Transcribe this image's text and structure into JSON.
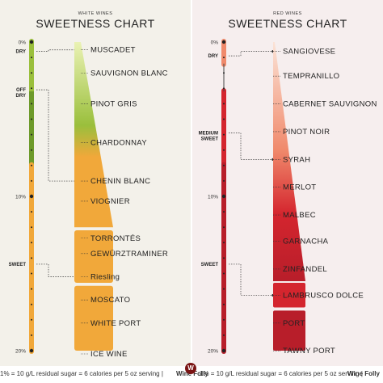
{
  "colors": {
    "white_light": "#eaf2b4",
    "white_mid": "#9abf3c",
    "white_dark": "#6d9a2a",
    "white_amber": "#f1a83a",
    "red_light": "#fbe3d6",
    "red_mid": "#f08a6c",
    "red_dark": "#d4252e",
    "red_deep": "#b81e2a"
  },
  "chart_data": [
    {
      "type": "bar",
      "panel": "white",
      "suptitle": "WHITE WINES",
      "title": "SWEETNESS CHART",
      "scale_ticks": [
        "0%",
        "10%",
        "20%"
      ],
      "level_labels": [
        {
          "text": "DRY",
          "level": 0.7
        },
        {
          "text": "OFF DRY",
          "level": 3.2
        },
        {
          "text": "SWEET",
          "level": 14.5
        }
      ],
      "categories": [
        "MUSCADET",
        "SAUVIGNON BLANC",
        "PINOT GRIS",
        "CHARDONNAY",
        "CHENIN BLANC",
        "VIOGNIER",
        "TORRONTÉS",
        "GEWÜRZTRAMINER",
        "Riesling",
        "MOSCATO",
        "WHITE PORT",
        "ICE WINE"
      ],
      "values": [
        0.3,
        1.8,
        3.8,
        6.3,
        8.8,
        10.1,
        12.5,
        13.5,
        15,
        16.5,
        18,
        20
      ],
      "range_starts": [
        0,
        0,
        0,
        0,
        0,
        0,
        0,
        0,
        0,
        0,
        0,
        0
      ],
      "leader_from": {
        "DRY": 0,
        "OFF DRY": 4,
        "SWEET": 8
      },
      "ylim": [
        0,
        20
      ]
    },
    {
      "type": "bar",
      "panel": "red",
      "suptitle": "RED WINES",
      "title": "SWEETNESS CHART",
      "scale_ticks": [
        "0%",
        "10%",
        "20%"
      ],
      "level_labels": [
        {
          "text": "DRY",
          "level": 1.0
        },
        {
          "text": "MEDIUM SWEET",
          "level": 6.0
        },
        {
          "text": "SWEET",
          "level": 14.5
        }
      ],
      "categories": [
        "SANGIOVESE",
        "TEMPRANILLO",
        "CABERNET SAUVIGNON",
        "PINOT NOIR",
        "SYRAH",
        "MERLOT",
        "MALBEC",
        "GARNACHA",
        "ZINFANDEL",
        "LAMBRUSCO DOLCE",
        "PORT",
        "TAWNY PORT"
      ],
      "values": [
        0.4,
        2.0,
        3.8,
        5.6,
        7.4,
        9.2,
        11.0,
        12.7,
        14.5,
        16.2,
        18.0,
        19.8
      ],
      "leader_from": {
        "DRY": 0,
        "MEDIUM SWEET": 4,
        "SWEET": 9
      },
      "ylim": [
        0,
        20
      ]
    }
  ],
  "footer": {
    "text_left": "1% = 10 g/L residual sugar = 6 calories per 5 oz serving |",
    "brand_left": "Wine Folly",
    "text_right": "1% = 10 g/L residual sugar = 6 calories per 5 oz serving |",
    "brand_right": "Wine Folly"
  }
}
